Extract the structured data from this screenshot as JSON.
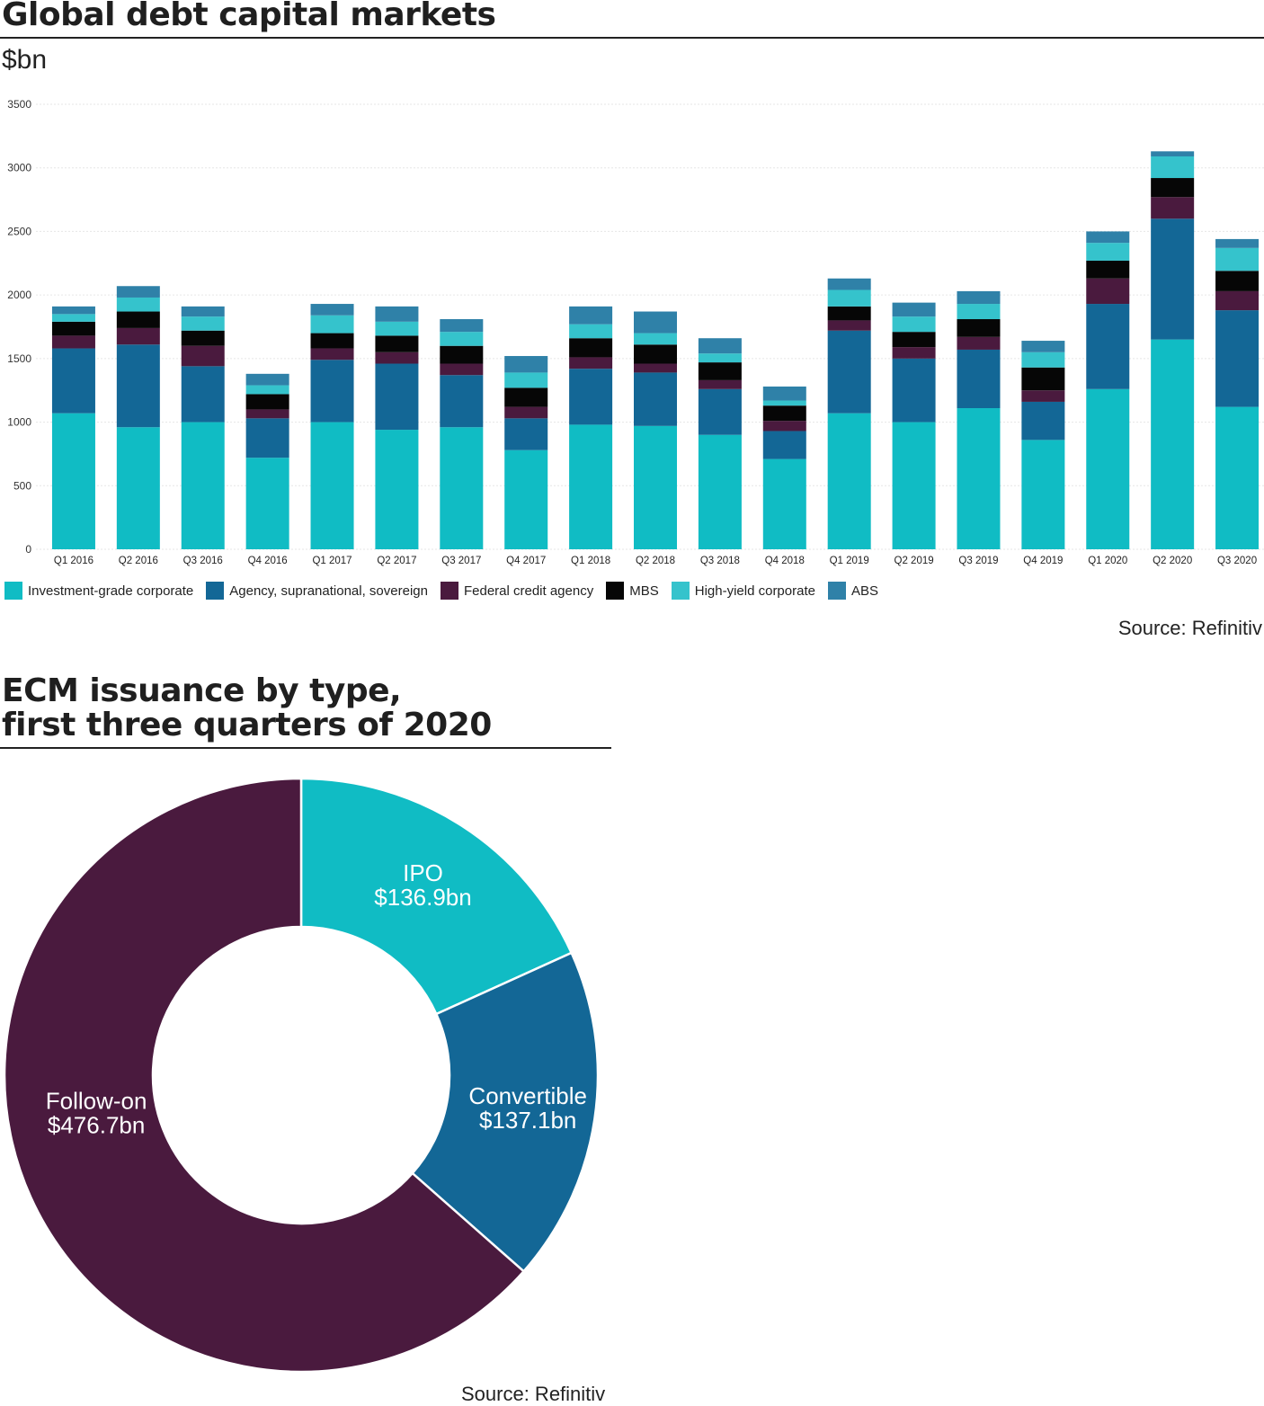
{
  "chart1": {
    "title": "Global debt capital markets",
    "unit": "$bn",
    "source": "Source: Refinitiv"
  },
  "chart2": {
    "title_line1": "ECM issuance by type,",
    "title_line2": "first three quarters of 2020",
    "source": "Source: Refinitiv"
  },
  "chart_data": [
    {
      "type": "bar",
      "stacked": true,
      "title": "Global debt capital markets",
      "ylabel": "$bn",
      "ylim": [
        0,
        3500
      ],
      "yticks": [
        0,
        500,
        1000,
        1500,
        2000,
        2500,
        3000,
        3500
      ],
      "grid": true,
      "legend": "bottom-left",
      "categories": [
        "Q1 2016",
        "Q2 2016",
        "Q3 2016",
        "Q4 2016",
        "Q1 2017",
        "Q2 2017",
        "Q3 2017",
        "Q4 2017",
        "Q1 2018",
        "Q2 2018",
        "Q3 2018",
        "Q4 2018",
        "Q1 2019",
        "Q2 2019",
        "Q3 2019",
        "Q4 2019",
        "Q1 2020",
        "Q2 2020",
        "Q3 2020"
      ],
      "series": [
        {
          "name": "Investment-grade corporate",
          "color": "#10bcc4",
          "values": [
            1070,
            960,
            1000,
            720,
            1000,
            940,
            960,
            780,
            980,
            970,
            900,
            710,
            1070,
            1000,
            1110,
            860,
            1260,
            1650,
            1120
          ]
        },
        {
          "name": "Agency, supranational, sovereign",
          "color": "#136796",
          "values": [
            510,
            650,
            440,
            310,
            490,
            520,
            410,
            250,
            440,
            420,
            360,
            220,
            650,
            500,
            460,
            300,
            670,
            950,
            760
          ]
        },
        {
          "name": "Federal credit agency",
          "color": "#4a1a3e",
          "values": [
            100,
            130,
            160,
            70,
            90,
            90,
            90,
            90,
            90,
            70,
            70,
            80,
            80,
            90,
            100,
            90,
            200,
            170,
            150
          ]
        },
        {
          "name": "MBS",
          "color": "#060606",
          "values": [
            110,
            130,
            120,
            120,
            120,
            130,
            140,
            150,
            150,
            150,
            140,
            120,
            110,
            120,
            140,
            180,
            140,
            150,
            160
          ]
        },
        {
          "name": "High-yield corporate",
          "color": "#35c3cc",
          "values": [
            60,
            110,
            110,
            70,
            140,
            110,
            110,
            120,
            110,
            90,
            70,
            40,
            130,
            120,
            120,
            120,
            140,
            170,
            180
          ]
        },
        {
          "name": "ABS",
          "color": "#2f81a8",
          "values": [
            60,
            90,
            80,
            90,
            90,
            120,
            100,
            130,
            140,
            170,
            120,
            110,
            90,
            110,
            100,
            90,
            90,
            40,
            70
          ]
        }
      ]
    },
    {
      "type": "pie",
      "donut": true,
      "title": "ECM issuance by type, first three quarters of 2020",
      "slices": [
        {
          "label": "IPO",
          "value": 136.9,
          "value_label": "$136.9bn",
          "color": "#10bcc4"
        },
        {
          "label": "Convertible",
          "value": 137.1,
          "value_label": "$137.1bn",
          "color": "#136796"
        },
        {
          "label": "Follow-on",
          "value": 476.7,
          "value_label": "$476.7bn",
          "color": "#4a1a3e"
        }
      ]
    }
  ]
}
